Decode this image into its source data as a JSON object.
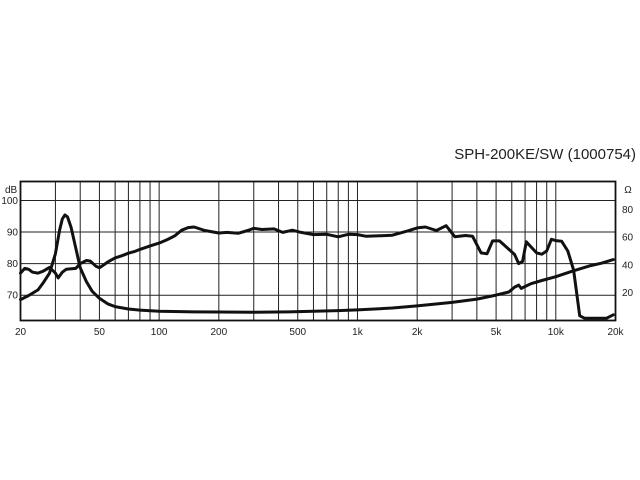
{
  "chart_data": {
    "type": "line",
    "title": "SPH-200KE/SW (1000754)",
    "x_scale": "log",
    "xlim": [
      20,
      20000
    ],
    "ylim_left": [
      62,
      106
    ],
    "ylim_right": [
      0,
      100
    ],
    "grid": true,
    "left_axis_label": "dB",
    "right_axis_label": "Ω",
    "x_ticks": [
      {
        "value": 20,
        "label": "20"
      },
      {
        "value": 50,
        "label": "50"
      },
      {
        "value": 100,
        "label": "100"
      },
      {
        "value": 200,
        "label": "200"
      },
      {
        "value": 500,
        "label": "500"
      },
      {
        "value": 1000,
        "label": "1k"
      },
      {
        "value": 2000,
        "label": "2k"
      },
      {
        "value": 5000,
        "label": "5k"
      },
      {
        "value": 10000,
        "label": "10k"
      },
      {
        "value": 20000,
        "label": "20k"
      }
    ],
    "y_left_ticks": [
      {
        "value": 70,
        "label": "70"
      },
      {
        "value": 80,
        "label": "80"
      },
      {
        "value": 90,
        "label": "90"
      },
      {
        "value": 100,
        "label": "100"
      }
    ],
    "y_right_ticks": [
      {
        "value": 20,
        "label": "20"
      },
      {
        "value": 40,
        "label": "40"
      },
      {
        "value": 60,
        "label": "60"
      },
      {
        "value": 80,
        "label": "80"
      }
    ],
    "series": [
      {
        "axis": "left",
        "points": [
          [
            20,
            77
          ],
          [
            21,
            78.5
          ],
          [
            22,
            78.2
          ],
          [
            23,
            77.3
          ],
          [
            24.5,
            77
          ],
          [
            26,
            77.6
          ],
          [
            28,
            78.8
          ],
          [
            30,
            77
          ],
          [
            31,
            75.5
          ],
          [
            32.5,
            77.3
          ],
          [
            34,
            78.2
          ],
          [
            38,
            78.5
          ],
          [
            40,
            80
          ],
          [
            43,
            81
          ],
          [
            45,
            80.8
          ],
          [
            48,
            79.2
          ],
          [
            50,
            78.7
          ],
          [
            52,
            79.4
          ],
          [
            55,
            80.5
          ],
          [
            60,
            81.8
          ],
          [
            65,
            82.5
          ],
          [
            70,
            83.3
          ],
          [
            75,
            83.8
          ],
          [
            80,
            84.5
          ],
          [
            90,
            85.6
          ],
          [
            100,
            86.5
          ],
          [
            110,
            87.6
          ],
          [
            120,
            88.8
          ],
          [
            130,
            90.6
          ],
          [
            140,
            91.4
          ],
          [
            150,
            91.6
          ],
          [
            170,
            90.5
          ],
          [
            200,
            89.7
          ],
          [
            220,
            89.9
          ],
          [
            250,
            89.6
          ],
          [
            280,
            90.5
          ],
          [
            300,
            91.2
          ],
          [
            330,
            90.8
          ],
          [
            380,
            91
          ],
          [
            420,
            89.9
          ],
          [
            470,
            90.6
          ],
          [
            520,
            89.9
          ],
          [
            600,
            89.2
          ],
          [
            700,
            89.3
          ],
          [
            800,
            88.5
          ],
          [
            900,
            89.3
          ],
          [
            1000,
            89.2
          ],
          [
            1100,
            88.7
          ],
          [
            1300,
            88.8
          ],
          [
            1500,
            89
          ],
          [
            1800,
            90.4
          ],
          [
            2000,
            91.3
          ],
          [
            2200,
            91.6
          ],
          [
            2500,
            90.5
          ],
          [
            2800,
            92
          ],
          [
            3100,
            88.5
          ],
          [
            3500,
            88.9
          ],
          [
            3800,
            88.7
          ],
          [
            4200,
            83.4
          ],
          [
            4500,
            83.1
          ],
          [
            4800,
            87.2
          ],
          [
            5200,
            87.2
          ],
          [
            5600,
            85.4
          ],
          [
            6200,
            82.9
          ],
          [
            6500,
            80
          ],
          [
            6800,
            80.7
          ],
          [
            7100,
            86.9
          ],
          [
            7500,
            85.3
          ],
          [
            8000,
            83.4
          ],
          [
            8500,
            83
          ],
          [
            9000,
            84
          ],
          [
            9500,
            87.7
          ],
          [
            10000,
            87.3
          ],
          [
            10700,
            87.1
          ],
          [
            11500,
            84
          ],
          [
            12300,
            78
          ],
          [
            13200,
            63.5
          ],
          [
            14000,
            62.7
          ],
          [
            16000,
            62.7
          ],
          [
            18000,
            62.7
          ],
          [
            19500,
            63.8
          ]
        ]
      },
      {
        "axis": "right",
        "points": [
          [
            20,
            15
          ],
          [
            22,
            18
          ],
          [
            24.5,
            22
          ],
          [
            26,
            27
          ],
          [
            28,
            34
          ],
          [
            30,
            48
          ],
          [
            31.5,
            65
          ],
          [
            32.5,
            73
          ],
          [
            33.5,
            76
          ],
          [
            34.5,
            74.5
          ],
          [
            36,
            67
          ],
          [
            38,
            52
          ],
          [
            40,
            38
          ],
          [
            43,
            28
          ],
          [
            46,
            21
          ],
          [
            50,
            16
          ],
          [
            55,
            12
          ],
          [
            60,
            10
          ],
          [
            70,
            8.3
          ],
          [
            80,
            7.5
          ],
          [
            100,
            6.7
          ],
          [
            150,
            6.2
          ],
          [
            200,
            6.1
          ],
          [
            300,
            6
          ],
          [
            450,
            6.2
          ],
          [
            600,
            6.6
          ],
          [
            800,
            7.1
          ],
          [
            1000,
            7.6
          ],
          [
            1500,
            9
          ],
          [
            2000,
            10.5
          ],
          [
            3000,
            13
          ],
          [
            4000,
            15.4
          ],
          [
            5000,
            18.3
          ],
          [
            5800,
            20.5
          ],
          [
            6200,
            24
          ],
          [
            6500,
            25.5
          ],
          [
            6700,
            23
          ],
          [
            6900,
            24
          ],
          [
            7500,
            26.5
          ],
          [
            8500,
            28.8
          ],
          [
            10000,
            31.5
          ],
          [
            12000,
            35.3
          ],
          [
            15000,
            39.5
          ],
          [
            17000,
            41.2
          ],
          [
            19500,
            43.8
          ]
        ]
      }
    ]
  }
}
